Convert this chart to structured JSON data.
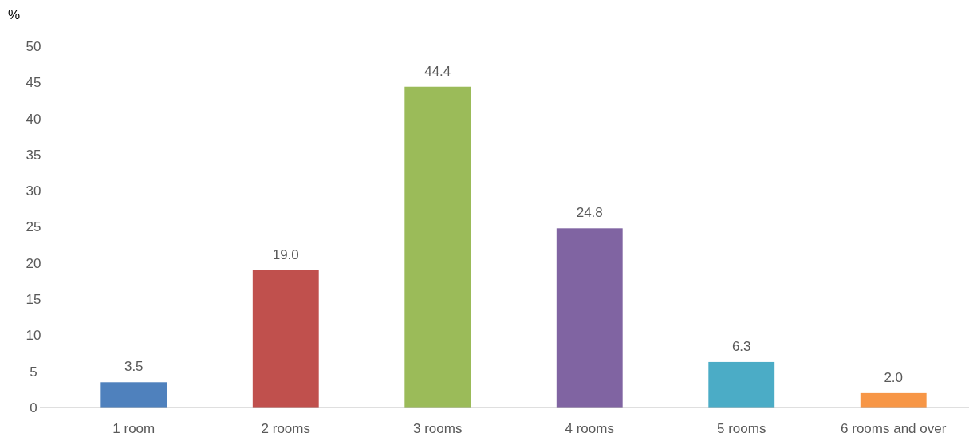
{
  "chart_data": {
    "type": "bar",
    "ylabel": "%",
    "categories": [
      "1 room",
      "2 rooms",
      "3 rooms",
      "4 rooms",
      "5 rooms",
      "6 rooms and over"
    ],
    "values": [
      3.5,
      19.0,
      44.4,
      24.8,
      6.3,
      2.0
    ],
    "colors": [
      "#4f81bd",
      "#c0504d",
      "#9bbb59",
      "#8064a2",
      "#4bacc6",
      "#f79646"
    ],
    "value_labels": [
      "3.5",
      "19.0",
      "44.4",
      "24.8",
      "6.3",
      "2.0"
    ],
    "ylim": [
      0,
      50
    ],
    "yticks": [
      0,
      5,
      10,
      15,
      20,
      25,
      30,
      35,
      40,
      45,
      50
    ],
    "grid": false
  }
}
